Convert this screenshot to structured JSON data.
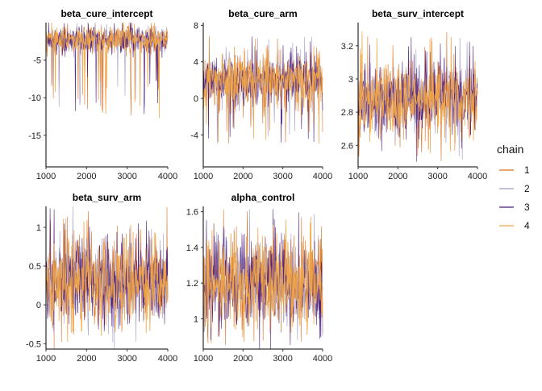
{
  "chart_data": {
    "type": "line",
    "description_free": true,
    "legend": {
      "title": "chain",
      "placement": "right",
      "entries": [
        "1",
        "2",
        "3",
        "4"
      ]
    },
    "series_colors": {
      "1": "#d9701c",
      "2": "#a099c6",
      "3": "#4b1b7e",
      "4": "#f0a444"
    },
    "x": {
      "range": [
        1000,
        4000
      ],
      "ticks": [
        1000,
        2000,
        3000,
        4000
      ]
    },
    "panels": [
      {
        "title": "beta_cure_intercept",
        "ylim": [
          -19.2,
          0
        ],
        "yticks": [
          -5,
          -10,
          -15
        ],
        "center": -2.2,
        "spread": 0.9,
        "lower_tail": 10.5,
        "upper_tail": 0.3
      },
      {
        "title": "beta_cure_arm",
        "ylim": [
          -7.5,
          8.3
        ],
        "yticks": [
          8,
          4,
          0,
          -4
        ],
        "center": 2.0,
        "spread": 1.3,
        "lower_tail": 7.0,
        "upper_tail": 5.0
      },
      {
        "title": "beta_surv_intercept",
        "ylim": [
          2.47,
          3.34
        ],
        "yticks": [
          3.2,
          3.0,
          2.8,
          2.6
        ],
        "center": 2.88,
        "spread": 0.1,
        "lower_tail": 0.38,
        "upper_tail": 0.42
      },
      {
        "title": "beta_surv_arm",
        "ylim": [
          -0.57,
          1.27
        ],
        "yticks": [
          1.0,
          0.5,
          0.0,
          -0.5
        ],
        "center": 0.3,
        "spread": 0.27,
        "lower_tail": 0.8,
        "upper_tail": 0.95
      },
      {
        "title": "alpha_control",
        "ylim": [
          0.83,
          1.63
        ],
        "yticks": [
          1.6,
          1.4,
          1.2,
          1.0
        ],
        "center": 1.2,
        "spread": 0.12,
        "lower_tail": 0.35,
        "upper_tail": 0.42
      }
    ]
  }
}
